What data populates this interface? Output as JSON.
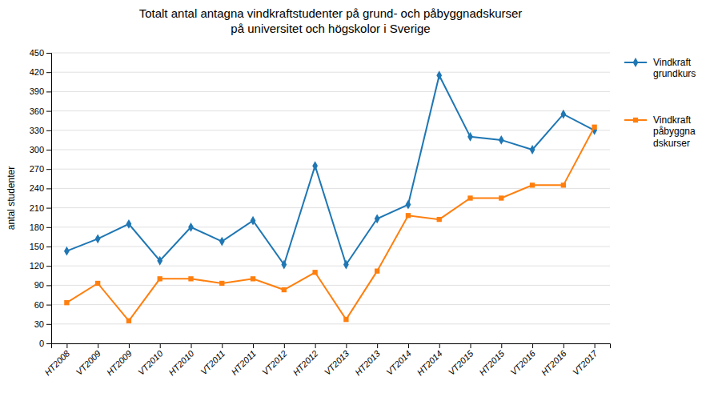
{
  "chart_data": {
    "type": "line",
    "title": "Totalt antal antagna vindkraftstudenter på grund- och påbyggnadskurser\npå universitet och högskolor i Sverige",
    "y_label": "antal studenter",
    "categories": [
      "HT2008",
      "VT2009",
      "HT2009",
      "VT2010",
      "HT2010",
      "VT2011",
      "HT2011",
      "VT2012",
      "HT2012",
      "VT2013",
      "HT2013",
      "VT2014",
      "HT2014",
      "VT2015",
      "HT2015",
      "VT2016",
      "HT2016",
      "VT2017"
    ],
    "series": [
      {
        "name": "Vindkraft\ngrundkurs",
        "marker": "diamond",
        "values": [
          143,
          162,
          185,
          128,
          180,
          158,
          190,
          122,
          275,
          122,
          193,
          215,
          415,
          320,
          315,
          300,
          355,
          330
        ]
      },
      {
        "name": "Vindkraft\npåbyggna\ndskurser",
        "marker": "square",
        "values": [
          63,
          93,
          35,
          100,
          100,
          93,
          100,
          83,
          110,
          37,
          112,
          198,
          192,
          225,
          225,
          245,
          245,
          335
        ]
      }
    ],
    "ylim": [
      0,
      450
    ],
    "yticks": [
      0,
      30,
      60,
      90,
      120,
      150,
      180,
      210,
      240,
      270,
      300,
      330,
      360,
      390,
      420,
      450
    ],
    "grid": true,
    "legend": "right"
  }
}
